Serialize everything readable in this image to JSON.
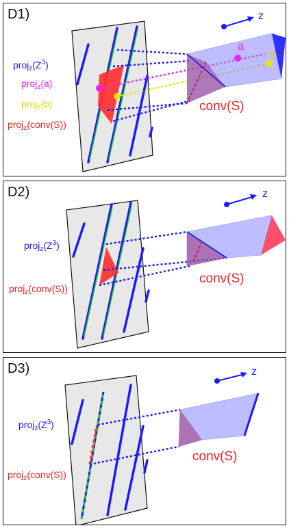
{
  "panels": [
    {
      "title": "D1)",
      "z_axis": "z",
      "labels": {
        "proj_Z3": {
          "base": "proj",
          "sub": "z",
          "arg_open": "(Z",
          "sup": "3",
          "arg_close": ")"
        },
        "proj_a": {
          "base": "proj",
          "sub": "z",
          "arg": "(a)"
        },
        "proj_b": {
          "base": "proj",
          "sub": "z",
          "arg": "(b)"
        },
        "proj_convS": {
          "base": "proj",
          "sub": "z",
          "arg": "(conv(S))"
        }
      },
      "conv_label": "conv(S)",
      "point_a": "a",
      "point_b": "b"
    },
    {
      "title": "D2)",
      "z_axis": "z",
      "labels": {
        "proj_Z3": {
          "base": "proj",
          "sub": "z",
          "arg_open": "(Z",
          "sup": "3",
          "arg_close": ")"
        },
        "proj_convS": {
          "base": "proj",
          "sub": "z",
          "arg": "(conv(S))"
        }
      },
      "conv_label": "conv(S)"
    },
    {
      "title": "D3)",
      "z_axis": "z",
      "labels": {
        "proj_Z3": {
          "base": "proj",
          "sub": "z",
          "arg_open": "(Z",
          "sup": "3",
          "arg_close": ")"
        },
        "proj_convS": {
          "base": "proj",
          "sub": "z",
          "arg": "(conv(S))"
        }
      },
      "conv_label": "conv(S)"
    }
  ],
  "colors": {
    "lattice_line": "#1a1aff",
    "green_line": "#22cc22",
    "projection_red": "#ff3030",
    "prism_fill": "#8888ff",
    "magenta": "#ee22ee",
    "yellow": "#e6e600",
    "plane_fill": "#e8e8e8"
  }
}
